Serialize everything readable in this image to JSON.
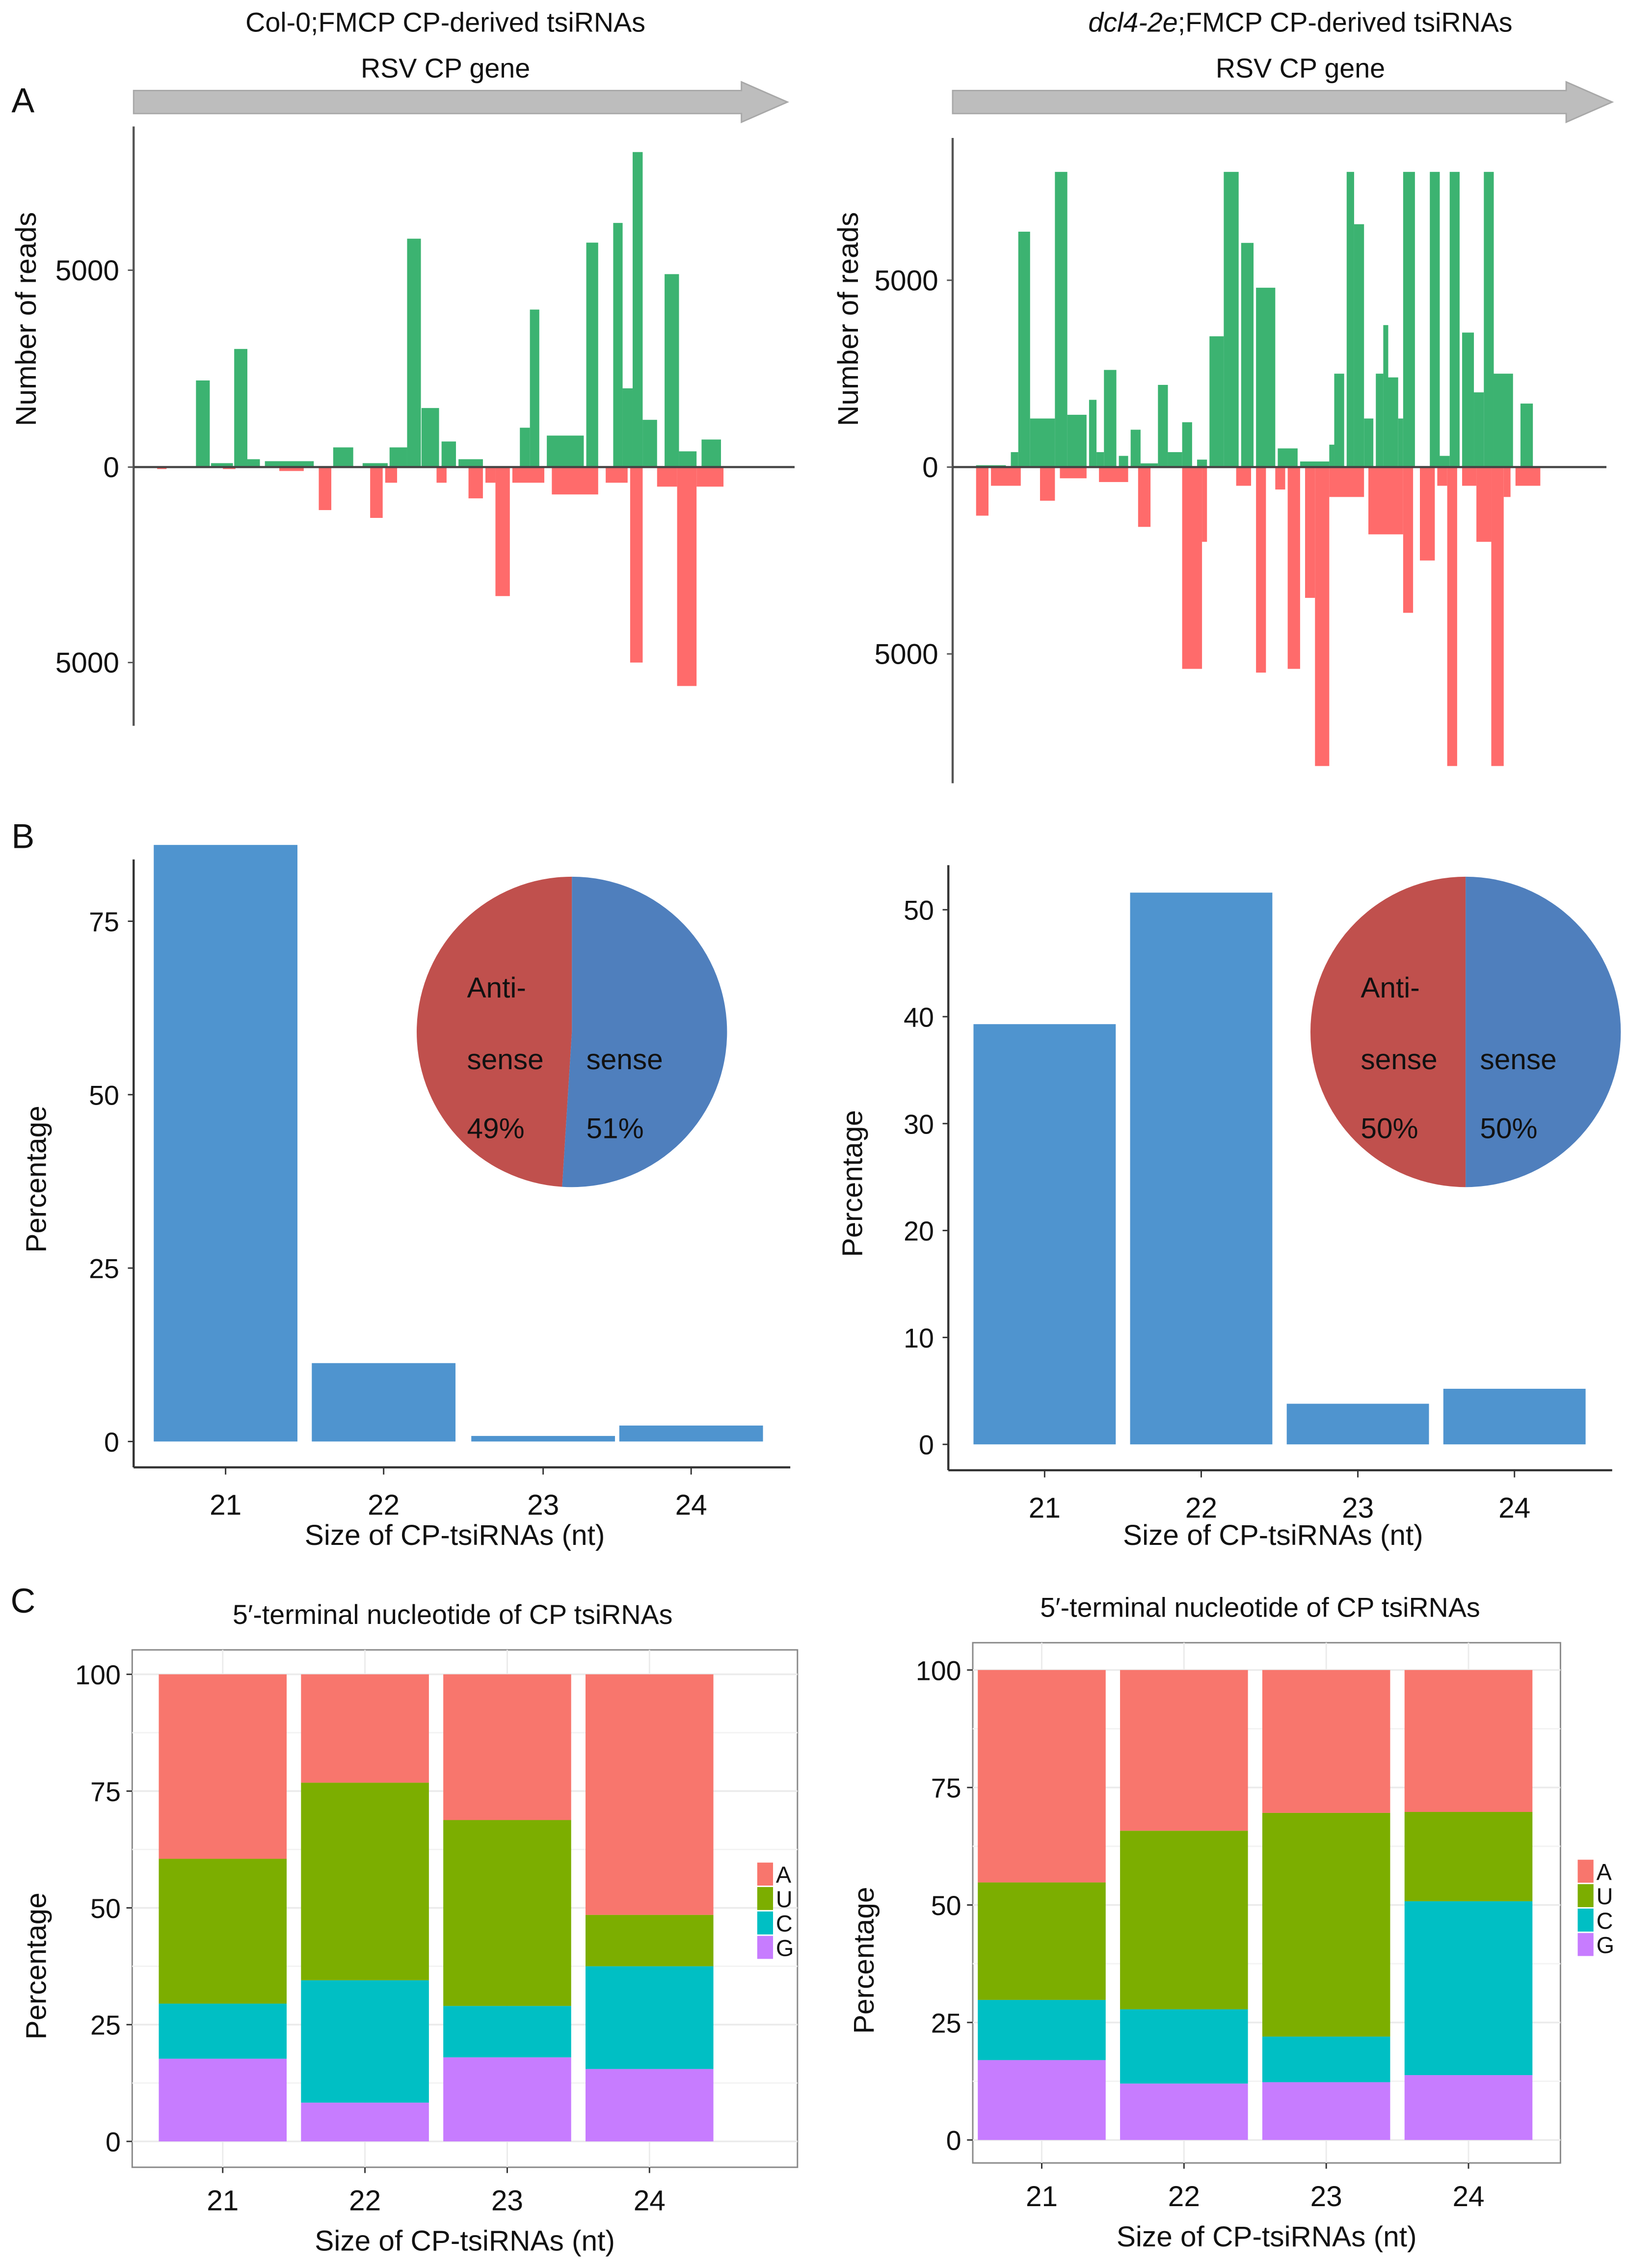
{
  "panel_labels": [
    "A",
    "B",
    "C"
  ],
  "chart_data": [
    {
      "type": "bar",
      "panel": "A",
      "title_italic": "",
      "title": "Col-0;FMCP CP-derived tsiRNAs",
      "gene_label": "RSV CP gene",
      "ylabel": "Number of reads",
      "yticks": [
        {
          "value": 5000,
          "label": "5000"
        },
        {
          "value": 0,
          "label": "0"
        },
        {
          "value": -5000,
          "label": "5000"
        }
      ],
      "ylim": [
        -5800,
        8200
      ],
      "xlim": [
        0,
        1000
      ],
      "colors": {
        "sense": "#3CB371",
        "antisense": "#FF6B6B"
      },
      "series": [
        {
          "name": "sense",
          "segments": [
            [
              111,
              133,
              2200
            ],
            [
              135,
              170,
              100
            ],
            [
              172,
              193,
              3000
            ],
            [
              193,
              213,
              200
            ],
            [
              221,
              299,
              150
            ],
            [
              330,
              362,
              500
            ],
            [
              377,
              417,
              100
            ],
            [
              420,
              448,
              500
            ],
            [
              448,
              470,
              5800
            ],
            [
              471,
              499,
              1500
            ],
            [
              503,
              526,
              650
            ],
            [
              530,
              569,
              200
            ],
            [
              628,
              644,
              1000
            ],
            [
              644,
              659,
              4000
            ],
            [
              671,
              730,
              800
            ],
            [
              734,
              753,
              5700
            ],
            [
              777,
              792,
              6200
            ],
            [
              792,
              808,
              2000
            ],
            [
              808,
              824,
              8000
            ],
            [
              824,
              847,
              1200
            ],
            [
              859,
              882,
              4900
            ],
            [
              882,
              910,
              400
            ],
            [
              918,
              949,
              700
            ]
          ]
        },
        {
          "name": "antisense",
          "segments": [
            [
              49,
              64,
              50
            ],
            [
              154,
              174,
              50
            ],
            [
              244,
              283,
              100
            ],
            [
              307,
              327,
              1100
            ],
            [
              389,
              409,
              1300
            ],
            [
              413,
              432,
              400
            ],
            [
              495,
              511,
              400
            ],
            [
              546,
              569,
              800
            ],
            [
              573,
              589,
              400
            ],
            [
              589,
              612,
              3300
            ],
            [
              616,
              667,
              400
            ],
            [
              679,
              753,
              700
            ],
            [
              765,
              800,
              400
            ],
            [
              804,
              824,
              5000
            ],
            [
              847,
              879,
              500
            ],
            [
              879,
              910,
              5600
            ],
            [
              910,
              953,
              500
            ]
          ]
        }
      ]
    },
    {
      "type": "bar",
      "panel": "A",
      "title_italic": "dcl4-2e",
      "title": ";FMCP CP-derived tsiRNAs",
      "gene_label": "RSV CP gene",
      "ylabel": "Number of reads",
      "yticks": [
        {
          "value": 5000,
          "label": "5000"
        },
        {
          "value": 0,
          "label": "0"
        },
        {
          "value": -5000,
          "label": "5000"
        }
      ],
      "ylim": [
        -8100,
        8100
      ],
      "xlim": [
        0,
        1000
      ],
      "colors": {
        "sense": "#3CB371",
        "antisense": "#FF6B6B"
      },
      "series": [
        {
          "name": "sense",
          "segments": [
            [
              47,
              95,
              50
            ],
            [
              103,
              115,
              400
            ],
            [
              115,
              134,
              6300
            ],
            [
              134,
              174,
              1300
            ],
            [
              174,
              194,
              7900
            ],
            [
              194,
              225,
              1400
            ],
            [
              229,
              241,
              1800
            ],
            [
              241,
              253,
              400
            ],
            [
              253,
              273,
              2600
            ],
            [
              277,
              292,
              300
            ],
            [
              296,
              312,
              1000
            ],
            [
              312,
              340,
              100
            ],
            [
              340,
              356,
              2200
            ],
            [
              356,
              379,
              400
            ],
            [
              379,
              395,
              1200
            ],
            [
              403,
              419,
              200
            ],
            [
              423,
              446,
              3500
            ],
            [
              446,
              470,
              7900
            ],
            [
              474,
              494,
              6000
            ],
            [
              498,
              529,
              4800
            ],
            [
              533,
              565,
              500
            ],
            [
              569,
              616,
              150
            ],
            [
              616,
              624,
              600
            ],
            [
              624,
              640,
              2500
            ],
            [
              644,
              656,
              7900
            ],
            [
              656,
              672,
              6500
            ],
            [
              672,
              687,
              1300
            ],
            [
              691,
              703,
              2500
            ],
            [
              703,
              711,
              3800
            ],
            [
              711,
              727,
              2400
            ],
            [
              727,
              735,
              1300
            ],
            [
              735,
              754,
              7900
            ],
            [
              778,
              794,
              7900
            ],
            [
              794,
              810,
              300
            ],
            [
              810,
              826,
              7900
            ],
            [
              830,
              849,
              3600
            ],
            [
              849,
              865,
              2000
            ],
            [
              865,
              881,
              7900
            ],
            [
              881,
              912,
              2500
            ],
            [
              924,
              944,
              1700
            ]
          ]
        },
        {
          "name": "antisense",
          "segments": [
            [
              47,
              67,
              1300
            ],
            [
              71,
              119,
              500
            ],
            [
              150,
              174,
              900
            ],
            [
              182,
              225,
              300
            ],
            [
              245,
              292,
              400
            ],
            [
              308,
              328,
              1600
            ],
            [
              379,
              411,
              5400
            ],
            [
              411,
              419,
              2000
            ],
            [
              466,
              490,
              500
            ],
            [
              498,
              514,
              5500
            ],
            [
              529,
              545,
              600
            ],
            [
              549,
              569,
              5400
            ],
            [
              577,
              593,
              3500
            ],
            [
              593,
              616,
              8000
            ],
            [
              616,
              672,
              800
            ],
            [
              679,
              735,
              1800
            ],
            [
              735,
              751,
              3900
            ],
            [
              762,
              786,
              2500
            ],
            [
              790,
              806,
              500
            ],
            [
              806,
              822,
              8000
            ],
            [
              830,
              853,
              500
            ],
            [
              853,
              877,
              2000
            ],
            [
              877,
              897,
              8000
            ],
            [
              897,
              908,
              800
            ],
            [
              916,
              956,
              500
            ]
          ]
        }
      ]
    },
    {
      "type": "bar",
      "panel": "B",
      "categories": [
        "21",
        "22",
        "23",
        "24"
      ],
      "values": [
        86.0,
        11.3,
        0.8,
        2.3
      ],
      "xlabel": "Size of CP-tsiRNAs (nt)",
      "ylabel": "Percentage",
      "yticks": [
        "0",
        "25",
        "50",
        "75"
      ],
      "ylim": [
        0,
        90
      ],
      "bar_color": "#4F94CF",
      "inset_pie": {
        "type": "pie",
        "slices": [
          {
            "label_line1": "Anti-",
            "label_line2": "sense",
            "pct_label": "49%",
            "value": 49,
            "color": "#C0504D"
          },
          {
            "label_line1": "",
            "label_line2": "sense",
            "pct_label": "51%",
            "value": 51,
            "color": "#4F7FBD"
          }
        ]
      }
    },
    {
      "type": "bar",
      "panel": "B",
      "categories": [
        "21",
        "22",
        "23",
        "24"
      ],
      "values": [
        39.3,
        51.6,
        3.8,
        5.2
      ],
      "xlabel": "Size of CP-tsiRNAs (nt)",
      "ylabel": "Percentage",
      "yticks": [
        "0",
        "10",
        "20",
        "30",
        "40",
        "50"
      ],
      "ylim": [
        0,
        54
      ],
      "bar_color": "#4F94CF",
      "inset_pie": {
        "type": "pie",
        "slices": [
          {
            "label_line1": "Anti-",
            "label_line2": "sense",
            "pct_label": "50%",
            "value": 50,
            "color": "#C0504D"
          },
          {
            "label_line1": "",
            "label_line2": "sense",
            "pct_label": "50%",
            "value": 50,
            "color": "#4F7FBD"
          }
        ]
      }
    },
    {
      "type": "bar",
      "panel": "C",
      "stacked": true,
      "title": "5′-terminal nucleotide of CP tsiRNAs",
      "categories": [
        "21",
        "22",
        "23",
        "24"
      ],
      "xlabel": "Size of CP-tsiRNAs (nt)",
      "ylabel": "Percentage",
      "yticks": [
        "0",
        "25",
        "50",
        "75",
        "100"
      ],
      "ylim": [
        0,
        100
      ],
      "legend": "right",
      "series": [
        {
          "name": "G",
          "color": "#C77CFF",
          "values": [
            17.7,
            8.3,
            18.0,
            15.5
          ]
        },
        {
          "name": "C",
          "color": "#00BFC4",
          "values": [
            11.8,
            26.2,
            11.0,
            22.0
          ]
        },
        {
          "name": "U",
          "color": "#7CAE00",
          "values": [
            31.0,
            42.3,
            39.8,
            11.0
          ]
        },
        {
          "name": "A",
          "color": "#F8766D",
          "values": [
            39.5,
            23.2,
            31.2,
            51.5
          ]
        }
      ]
    },
    {
      "type": "bar",
      "panel": "C",
      "stacked": true,
      "title": "5′-terminal nucleotide of CP tsiRNAs",
      "categories": [
        "21",
        "22",
        "23",
        "24"
      ],
      "xlabel": "Size of CP-tsiRNAs (nt)",
      "ylabel": "Percentage",
      "yticks": [
        "0",
        "25",
        "50",
        "75",
        "100"
      ],
      "ylim": [
        0,
        100
      ],
      "legend": "right",
      "series": [
        {
          "name": "G",
          "color": "#C77CFF",
          "values": [
            17.0,
            12.0,
            12.3,
            13.8
          ]
        },
        {
          "name": "C",
          "color": "#00BFC4",
          "values": [
            12.8,
            15.8,
            9.7,
            37.0
          ]
        },
        {
          "name": "U",
          "color": "#7CAE00",
          "values": [
            25.0,
            38.0,
            47.6,
            19.0
          ]
        },
        {
          "name": "A",
          "color": "#F8766D",
          "values": [
            45.2,
            34.2,
            30.4,
            30.2
          ]
        }
      ]
    }
  ]
}
